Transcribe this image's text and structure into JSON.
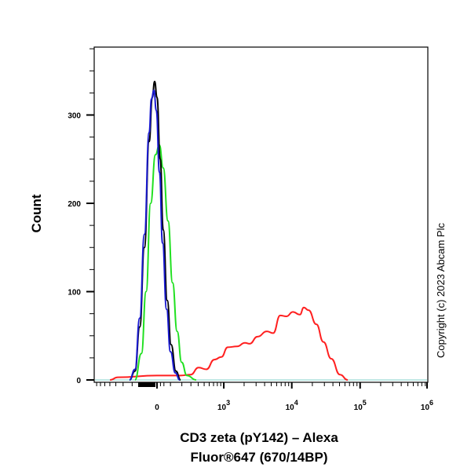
{
  "chart_data": {
    "type": "line",
    "title": "",
    "xlabel_lines": [
      "CD3 zeta (pY142) – Alexa",
      "Fluor®647 (670/14BP)"
    ],
    "ylabel": "Count",
    "x_scale": "biexponential",
    "xlim": [
      -870,
      1000000
    ],
    "ylim": [
      0,
      377
    ],
    "grid": false,
    "x_ticks": [
      {
        "value": 0,
        "base": "0",
        "exp": ""
      },
      {
        "value": 1000,
        "base": "10",
        "exp": "3"
      },
      {
        "value": 10000,
        "base": "10",
        "exp": "4"
      },
      {
        "value": 100000,
        "base": "10",
        "exp": "5"
      },
      {
        "value": 1000000,
        "base": "10",
        "exp": "6"
      }
    ],
    "y_ticks": [
      0,
      100,
      200,
      300
    ],
    "series": [
      {
        "color": "#ff2020",
        "x": [
          -497,
          -371,
          0,
          188,
          298,
          405,
          543,
          720,
          920,
          1144,
          1577,
          2058,
          2413,
          3144,
          4324,
          5338,
          6773,
          8371,
          10352,
          13142,
          14995,
          17573,
          22898,
          29053,
          37850,
          50673,
          66030
        ],
        "y": [
          0,
          3,
          5,
          5,
          6,
          14,
          12,
          23,
          26,
          37,
          38,
          42,
          41,
          49,
          55,
          53,
          73,
          72,
          77,
          74,
          82,
          79,
          63,
          43,
          24,
          6,
          0
        ]
      },
      {
        "color": "#20e020",
        "x": [
          -173,
          -117,
          -80,
          -46,
          -11,
          17,
          45,
          81,
          117,
          156,
          198,
          253,
          371
        ],
        "y": [
          0,
          30,
          100,
          200,
          255,
          266,
          240,
          180,
          110,
          55,
          20,
          5,
          0
        ]
      },
      {
        "color": "#000000",
        "x": [
          -227,
          -173,
          -131,
          -93,
          -57,
          -34,
          -17,
          0,
          23,
          45,
          75,
          105,
          145,
          188
        ],
        "y": [
          0,
          10,
          60,
          150,
          270,
          320,
          338,
          320,
          250,
          170,
          90,
          40,
          10,
          0
        ]
      },
      {
        "color": "#1a1ad0",
        "x": [
          -227,
          -173,
          -131,
          -93,
          -57,
          -40,
          -22,
          -5,
          18,
          40,
          70,
          100,
          140,
          180
        ],
        "y": [
          0,
          12,
          70,
          165,
          280,
          318,
          328,
          305,
          235,
          155,
          80,
          32,
          8,
          0
        ]
      }
    ]
  },
  "copyright": "Copyright (c) 2023 Abcam Plc"
}
